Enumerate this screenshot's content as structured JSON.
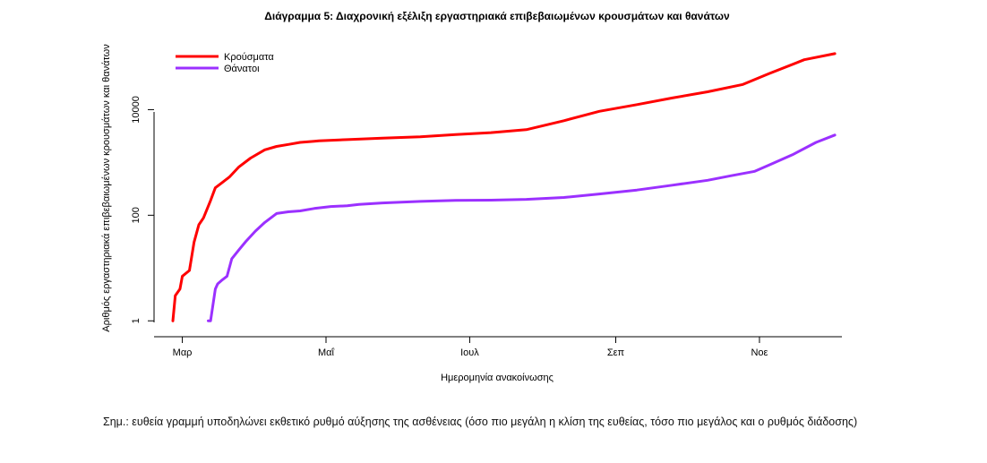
{
  "chart_data": {
    "type": "line",
    "title": "Διάγραμμα 5: Διαχρονική εξέλιξη εργαστηριακά επιβεβαιωμένων κρουσμάτων και θανάτων",
    "xlabel": "Ημερομηνία ανακοίνωσης",
    "ylabel": "Αριθμός εργαστηριακά επιβεβαιωμένων κρουσμάτων και θανάτων",
    "yscale": "log",
    "ylim": [
      0.5,
      250000
    ],
    "xlim": [
      "2020-02-18",
      "2020-12-06"
    ],
    "xticks": [
      {
        "date": "2020-03-01",
        "label": "Μαρ"
      },
      {
        "date": "2020-05-01",
        "label": "Μαΐ"
      },
      {
        "date": "2020-07-01",
        "label": "Ιουλ"
      },
      {
        "date": "2020-09-01",
        "label": "Σεπ"
      },
      {
        "date": "2020-11-01",
        "label": "Νοε"
      }
    ],
    "yticks": [
      {
        "value": 1,
        "label": "1"
      },
      {
        "value": 100,
        "label": "100"
      },
      {
        "value": 10000,
        "label": "10000"
      }
    ],
    "legend_position": "top-left",
    "grid": false,
    "series": [
      {
        "name": "Κρούσματα",
        "color": "#ff0000",
        "points": [
          [
            "2020-02-26",
            1
          ],
          [
            "2020-02-27",
            3
          ],
          [
            "2020-02-29",
            4
          ],
          [
            "2020-03-01",
            7
          ],
          [
            "2020-03-04",
            9
          ],
          [
            "2020-03-06",
            31
          ],
          [
            "2020-03-08",
            66
          ],
          [
            "2020-03-10",
            89
          ],
          [
            "2020-03-13",
            190
          ],
          [
            "2020-03-15",
            331
          ],
          [
            "2020-03-18",
            418
          ],
          [
            "2020-03-21",
            530
          ],
          [
            "2020-03-25",
            821
          ],
          [
            "2020-03-30",
            1212
          ],
          [
            "2020-04-05",
            1735
          ],
          [
            "2020-04-10",
            2011
          ],
          [
            "2020-04-15",
            2192
          ],
          [
            "2020-04-20",
            2401
          ],
          [
            "2020-04-26",
            2517
          ],
          [
            "2020-04-28",
            2566
          ],
          [
            "2020-05-10",
            2710
          ],
          [
            "2020-05-25",
            2882
          ],
          [
            "2020-06-10",
            3068
          ],
          [
            "2020-06-25",
            3376
          ],
          [
            "2020-07-10",
            3672
          ],
          [
            "2020-07-25",
            4166
          ],
          [
            "2020-08-10",
            6177
          ],
          [
            "2020-08-25",
            9280
          ],
          [
            "2020-09-10",
            12452
          ],
          [
            "2020-09-25",
            16627
          ],
          [
            "2020-10-10",
            21772
          ],
          [
            "2020-10-25",
            29992
          ],
          [
            "2020-11-05",
            48000
          ],
          [
            "2020-11-20",
            88000
          ],
          [
            "2020-12-03",
            115000
          ]
        ]
      },
      {
        "name": "Θάνατοι",
        "color": "#9b30ff",
        "points": [
          [
            "2020-03-12",
            1
          ],
          [
            "2020-03-13",
            1
          ],
          [
            "2020-03-15",
            4
          ],
          [
            "2020-03-16",
            5
          ],
          [
            "2020-03-18",
            6
          ],
          [
            "2020-03-20",
            7
          ],
          [
            "2020-03-22",
            15
          ],
          [
            "2020-03-25",
            22
          ],
          [
            "2020-03-28",
            32
          ],
          [
            "2020-04-01",
            50
          ],
          [
            "2020-04-05",
            73
          ],
          [
            "2020-04-10",
            108
          ],
          [
            "2020-04-15",
            116
          ],
          [
            "2020-04-20",
            121
          ],
          [
            "2020-04-26",
            134
          ],
          [
            "2020-05-03",
            146
          ],
          [
            "2020-05-10",
            151
          ],
          [
            "2020-05-15",
            160
          ],
          [
            "2020-05-25",
            171
          ],
          [
            "2020-06-10",
            183
          ],
          [
            "2020-06-25",
            191
          ],
          [
            "2020-07-10",
            193
          ],
          [
            "2020-07-25",
            200
          ],
          [
            "2020-08-10",
            217
          ],
          [
            "2020-08-25",
            253
          ],
          [
            "2020-09-10",
            300
          ],
          [
            "2020-09-25",
            370
          ],
          [
            "2020-10-10",
            460
          ],
          [
            "2020-10-20",
            560
          ],
          [
            "2020-10-30",
            680
          ],
          [
            "2020-11-05",
            890
          ],
          [
            "2020-11-15",
            1400
          ],
          [
            "2020-11-25",
            2400
          ],
          [
            "2020-12-03",
            3300
          ]
        ]
      }
    ]
  },
  "note": "Σημ.: ευθεία γραμμή υποδηλώνει εκθετικό ρυθμό αύξησης της ασθένειας (όσο πιο μεγάλη η κλίση της ευθείας, τόσο πιο μεγάλος και ο ρυθμός διάδοσης)"
}
